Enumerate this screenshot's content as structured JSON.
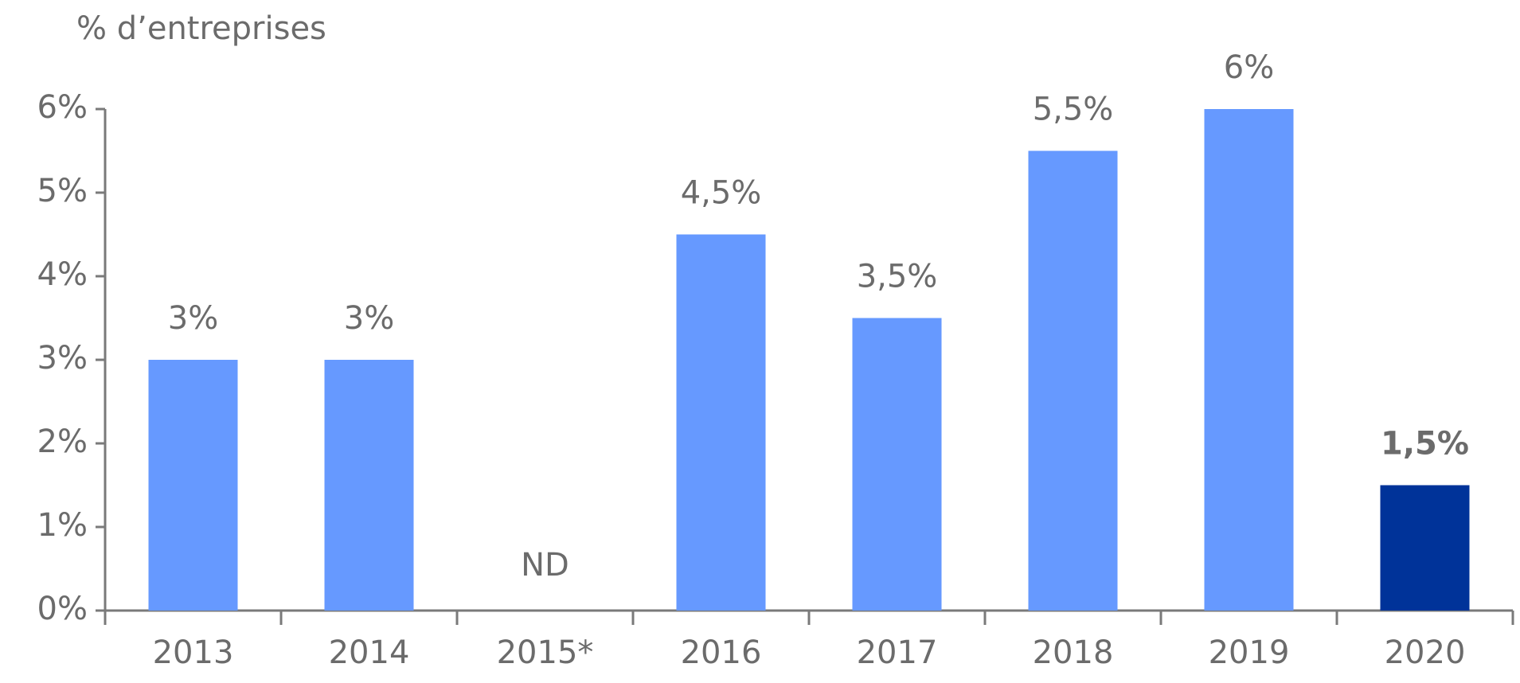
{
  "chart_data": {
    "type": "bar",
    "y_label": "% d’entreprises",
    "categories": [
      "2013",
      "2014",
      "2015*",
      "2016",
      "2017",
      "2018",
      "2019",
      "2020"
    ],
    "values": [
      3,
      3,
      null,
      4.5,
      3.5,
      5.5,
      6,
      1.5
    ],
    "value_labels": [
      "3%",
      "3%",
      "ND",
      "4,5%",
      "3,5%",
      "5,5%",
      "6%",
      "1,5%"
    ],
    "colors": [
      "#6699ff",
      "#6699ff",
      "#6699ff",
      "#6699ff",
      "#6699ff",
      "#6699ff",
      "#6699ff",
      "#003399"
    ],
    "ylim": [
      0,
      6
    ],
    "yticks": [
      {
        "value": 0,
        "label": "0%"
      },
      {
        "value": 1,
        "label": "1%"
      },
      {
        "value": 2,
        "label": "2%"
      },
      {
        "value": 3,
        "label": "3%"
      },
      {
        "value": 4,
        "label": "4%"
      },
      {
        "value": 5,
        "label": "5%"
      },
      {
        "value": 6,
        "label": "6%"
      }
    ],
    "grid": false
  }
}
